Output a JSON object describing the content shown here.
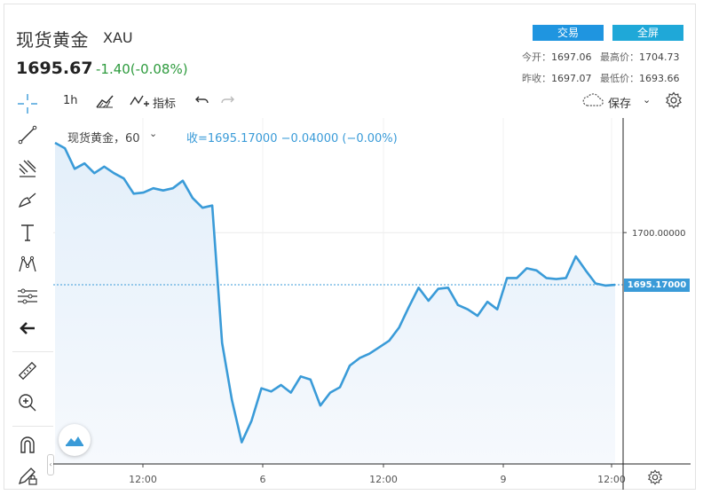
{
  "header": {
    "title": "现货黄金",
    "symbol": "XAU",
    "price": "1695.67",
    "change": "-1.40(-0.08%)",
    "trade_label": "交易",
    "fullscreen_label": "全屏",
    "open_label": "今开：",
    "open_value": "1697.06",
    "high_label": "最高价：",
    "high_value": "1704.73",
    "prev_close_label": "昨收：",
    "prev_close_value": "1697.07",
    "low_label": "最低价：",
    "low_value": "1693.66"
  },
  "toolbar": {
    "interval": "1h",
    "indicators": "指标",
    "save": "保存"
  },
  "legend": {
    "name": "现货黄金，60",
    "value": "收=1695.17000  −0.04000 (−0.00%)"
  },
  "colors": {
    "line": "#3a9bd8",
    "fill": "#eef5fc",
    "last_price_bg": "#3a9bd8",
    "up": "#2e9b3e"
  },
  "chart_data": {
    "type": "area",
    "x_ticks": [
      "12:00",
      "6",
      "12:00",
      "9",
      "12:00"
    ],
    "y_ticks": [
      "1700.00000"
    ],
    "last_price_label": "1695.17000",
    "ylim": [
      1678.6,
      1710.6
    ],
    "last_value": 1695.17,
    "values": [
      1708.3,
      1707.8,
      1705.9,
      1706.4,
      1705.5,
      1706.1,
      1705.5,
      1705.0,
      1703.6,
      1703.7,
      1704.1,
      1703.9,
      1704.1,
      1704.8,
      1703.2,
      1702.3,
      1702.5,
      1689.8,
      1684.5,
      1680.6,
      1682.6,
      1685.6,
      1685.3,
      1685.9,
      1685.2,
      1686.7,
      1686.4,
      1684.0,
      1685.2,
      1685.7,
      1687.7,
      1688.4,
      1688.8,
      1689.4,
      1690.0,
      1691.2,
      1693.1,
      1694.9,
      1693.7,
      1694.8,
      1694.9,
      1693.3,
      1692.9,
      1692.3,
      1693.6,
      1692.9,
      1695.8,
      1695.8,
      1696.7,
      1696.5,
      1695.8,
      1695.7,
      1695.8,
      1697.8,
      1696.5,
      1695.3,
      1695.1,
      1695.17
    ]
  }
}
